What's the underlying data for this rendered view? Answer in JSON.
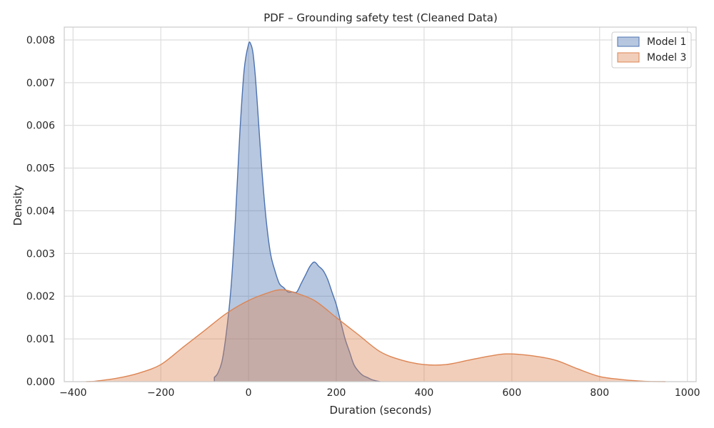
{
  "chart_data": {
    "type": "area",
    "title": "PDF – Grounding safety test (Cleaned Data)",
    "xlabel": "Duration (seconds)",
    "ylabel": "Density",
    "xlim": [
      -420,
      1020
    ],
    "ylim": [
      0,
      0.0083
    ],
    "xticks": [
      -400,
      -200,
      0,
      200,
      400,
      600,
      800,
      1000
    ],
    "xtick_labels": [
      "−400",
      "−200",
      "0",
      "200",
      "400",
      "600",
      "800",
      "1000"
    ],
    "yticks": [
      0,
      0.001,
      0.002,
      0.003,
      0.004,
      0.005,
      0.006,
      0.007,
      0.008
    ],
    "ytick_labels": [
      "0.000",
      "0.001",
      "0.002",
      "0.003",
      "0.004",
      "0.005",
      "0.006",
      "0.007",
      "0.008"
    ],
    "grid": true,
    "legend_position": "top-right",
    "series": [
      {
        "name": "Model 1",
        "color": "#4c72b0",
        "x": [
          -78,
          -70,
          -60,
          -50,
          -40,
          -30,
          -20,
          -10,
          0,
          5,
          10,
          15,
          20,
          30,
          40,
          50,
          60,
          70,
          80,
          90,
          100,
          110,
          120,
          130,
          140,
          150,
          160,
          170,
          180,
          190,
          200,
          210,
          220,
          230,
          240,
          250,
          260,
          270,
          280,
          290,
          300
        ],
        "y": [
          0.0001,
          0.0002,
          0.0005,
          0.0012,
          0.0022,
          0.0038,
          0.0058,
          0.0073,
          0.0079,
          0.0079,
          0.0077,
          0.0072,
          0.0065,
          0.005,
          0.0038,
          0.003,
          0.0026,
          0.0023,
          0.0022,
          0.0021,
          0.0021,
          0.0021,
          0.0023,
          0.0025,
          0.0027,
          0.0028,
          0.0027,
          0.0026,
          0.0024,
          0.0021,
          0.0018,
          0.0014,
          0.001,
          0.0007,
          0.0004,
          0.00025,
          0.00015,
          0.0001,
          5e-05,
          2e-05,
          0.0
        ]
      },
      {
        "name": "Model 3",
        "color": "#dd8452",
        "x": [
          -370,
          -350,
          -300,
          -250,
          -200,
          -150,
          -100,
          -50,
          0,
          50,
          75,
          100,
          150,
          200,
          250,
          300,
          350,
          400,
          450,
          500,
          550,
          590,
          650,
          700,
          750,
          800,
          850,
          900,
          950
        ],
        "y": [
          0.0,
          1e-05,
          8e-05,
          0.0002,
          0.0004,
          0.0008,
          0.0012,
          0.0016,
          0.0019,
          0.0021,
          0.00215,
          0.0021,
          0.0019,
          0.0015,
          0.0011,
          0.0007,
          0.0005,
          0.0004,
          0.0004,
          0.0005,
          0.0006,
          0.00065,
          0.0006,
          0.0005,
          0.0003,
          0.00012,
          5e-05,
          1e-05,
          0.0
        ]
      }
    ]
  }
}
